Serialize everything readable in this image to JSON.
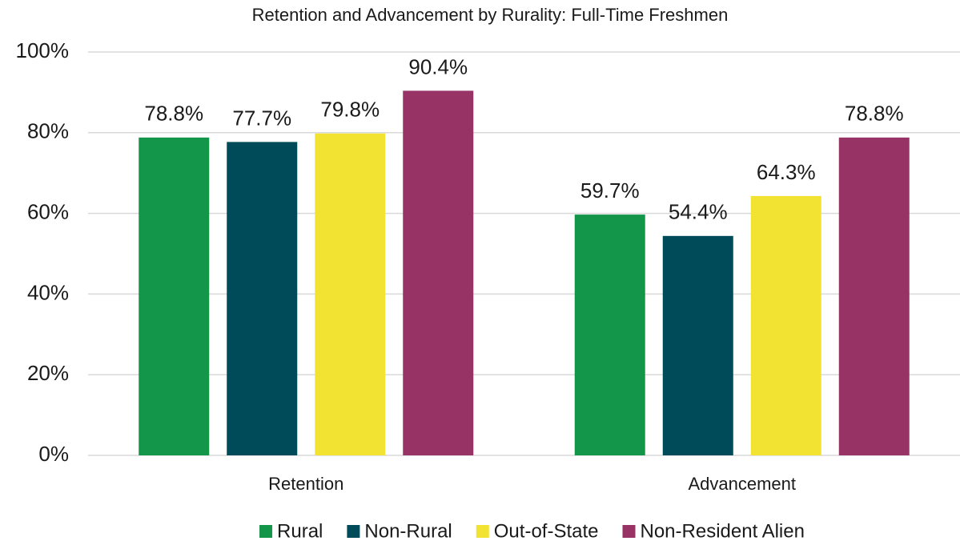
{
  "chart_data": {
    "type": "bar",
    "title": "Retention and Advancement by Rurality: Full-Time Freshmen",
    "categories": [
      "Retention",
      "Advancement"
    ],
    "series": [
      {
        "name": "Rural",
        "color": "#13954a",
        "values": [
          78.8,
          59.7
        ],
        "value_labels": [
          "78.8%",
          "59.7%"
        ]
      },
      {
        "name": "Non-Rural",
        "color": "#004b5a",
        "values": [
          77.7,
          54.4
        ],
        "value_labels": [
          "77.7%",
          "54.4%"
        ]
      },
      {
        "name": "Out-of-State",
        "color": "#f2e232",
        "values": [
          79.8,
          64.3
        ],
        "value_labels": [
          "79.8%",
          "64.3%"
        ]
      },
      {
        "name": "Non-Resident Alien",
        "color": "#983366",
        "values": [
          90.4,
          78.8
        ],
        "value_labels": [
          "90.4%",
          "78.8%"
        ]
      }
    ],
    "ylim": [
      0,
      100
    ],
    "yticks": [
      {
        "value": 0,
        "label": "0%"
      },
      {
        "value": 20,
        "label": "20%"
      },
      {
        "value": 40,
        "label": "40%"
      },
      {
        "value": 60,
        "label": "60%"
      },
      {
        "value": 80,
        "label": "80%"
      },
      {
        "value": 100,
        "label": "100%"
      }
    ],
    "grid": true,
    "legend": "bottom"
  }
}
